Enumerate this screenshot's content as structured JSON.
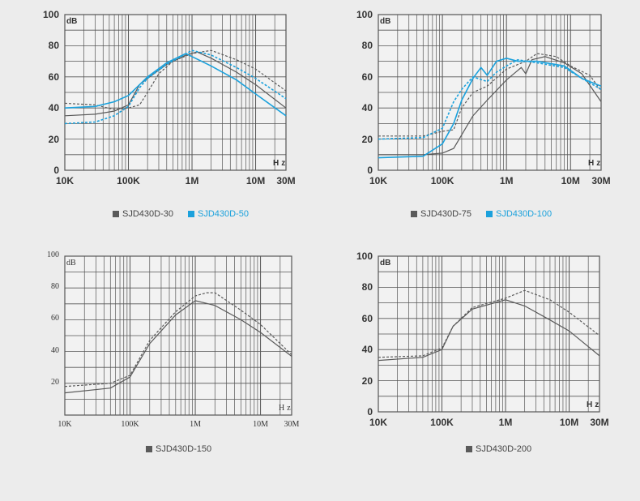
{
  "colors": {
    "gray": "#5a5a5a",
    "blue": "#1ba1dc",
    "grid": "#555555"
  },
  "chart_data": [
    {
      "type": "line",
      "xscale": "log",
      "xlim": [
        10000,
        30000000
      ],
      "ylim": [
        0,
        100
      ],
      "ylabel": "dB",
      "xlabel": "Hz",
      "xticks": [
        {
          "v": 10000,
          "label": "10K"
        },
        {
          "v": 100000,
          "label": "100K"
        },
        {
          "v": 1000000,
          "label": "1M"
        },
        {
          "v": 10000000,
          "label": "10M"
        },
        {
          "v": 30000000,
          "label": "30M"
        }
      ],
      "yticks": [
        0,
        20,
        40,
        60,
        80,
        100
      ],
      "legend": [
        {
          "label": "SJD430D-30",
          "color": "gray"
        },
        {
          "label": "SJD430D-50",
          "color": "blue"
        }
      ],
      "series": [
        {
          "name": "SJD430D-30",
          "style": "solid",
          "color": "gray",
          "points": [
            [
              10000.0,
              35
            ],
            [
              30000.0,
              36
            ],
            [
              60000.0,
              38
            ],
            [
              100000.0,
              42
            ],
            [
              150000.0,
              55
            ],
            [
              200000.0,
              59
            ],
            [
              400000.0,
              68
            ],
            [
              800000.0,
              74
            ],
            [
              1200000.0,
              76
            ],
            [
              2000000.0,
              72
            ],
            [
              5000000.0,
              63
            ],
            [
              10000000.0,
              55
            ],
            [
              30000000.0,
              40
            ]
          ]
        },
        {
          "name": "SJD430D-30",
          "style": "dashed",
          "color": "gray",
          "points": [
            [
              10000.0,
              43
            ],
            [
              30000.0,
              42
            ],
            [
              60000.0,
              39
            ],
            [
              100000.0,
              40
            ],
            [
              150000.0,
              42
            ],
            [
              200000.0,
              50
            ],
            [
              300000.0,
              62
            ],
            [
              500000.0,
              70
            ],
            [
              1000000.0,
              75
            ],
            [
              2000000.0,
              77
            ],
            [
              5000000.0,
              71
            ],
            [
              10000000.0,
              65
            ],
            [
              30000000.0,
              51
            ]
          ]
        },
        {
          "name": "SJD430D-50",
          "style": "solid",
          "color": "blue",
          "points": [
            [
              10000.0,
              40
            ],
            [
              30000.0,
              41
            ],
            [
              60000.0,
              44
            ],
            [
              100000.0,
              48
            ],
            [
              150000.0,
              55
            ],
            [
              200000.0,
              60
            ],
            [
              400000.0,
              69
            ],
            [
              800000.0,
              75
            ],
            [
              1000000.0,
              73
            ],
            [
              2000000.0,
              67
            ],
            [
              5000000.0,
              58
            ],
            [
              10000000.0,
              49
            ],
            [
              30000000.0,
              35
            ]
          ]
        },
        {
          "name": "SJD430D-50",
          "style": "dashed",
          "color": "blue",
          "points": [
            [
              10000.0,
              30
            ],
            [
              30000.0,
              31
            ],
            [
              60000.0,
              35
            ],
            [
              100000.0,
              41
            ],
            [
              150000.0,
              53
            ],
            [
              200000.0,
              59
            ],
            [
              400000.0,
              68
            ],
            [
              1000000.0,
              77
            ],
            [
              2000000.0,
              74
            ],
            [
              5000000.0,
              66
            ],
            [
              10000000.0,
              59
            ],
            [
              30000000.0,
              46
            ]
          ]
        }
      ]
    },
    {
      "type": "line",
      "xscale": "log",
      "xlim": [
        10000,
        30000000
      ],
      "ylim": [
        0,
        100
      ],
      "ylabel": "dB",
      "xlabel": "Hz",
      "xticks": [
        {
          "v": 10000,
          "label": "10K"
        },
        {
          "v": 100000,
          "label": "100K"
        },
        {
          "v": 1000000,
          "label": "1M"
        },
        {
          "v": 10000000,
          "label": "10M"
        },
        {
          "v": 30000000,
          "label": "30M"
        }
      ],
      "yticks": [
        0,
        20,
        40,
        60,
        80,
        100
      ],
      "legend": [
        {
          "label": "SJD430D-75",
          "color": "gray"
        },
        {
          "label": "SJD430D-100",
          "color": "blue"
        }
      ],
      "series": [
        {
          "name": "SJD430D-75",
          "style": "solid",
          "color": "gray",
          "points": [
            [
              10000.0,
              10
            ],
            [
              50000.0,
              10
            ],
            [
              100000.0,
              11
            ],
            [
              150000.0,
              14
            ],
            [
              300000.0,
              35
            ],
            [
              500000.0,
              45
            ],
            [
              1000000.0,
              58
            ],
            [
              1700000.0,
              66
            ],
            [
              2000000.0,
              62
            ],
            [
              2500000.0,
              71
            ],
            [
              4000000.0,
              73
            ],
            [
              8000000.0,
              69
            ],
            [
              15000000.0,
              62
            ],
            [
              30000000.0,
              44
            ]
          ]
        },
        {
          "name": "SJD430D-75",
          "style": "dashed",
          "color": "gray",
          "points": [
            [
              10000.0,
              22
            ],
            [
              50000.0,
              22
            ],
            [
              100000.0,
              25
            ],
            [
              150000.0,
              26
            ],
            [
              200000.0,
              40
            ],
            [
              300000.0,
              50
            ],
            [
              500000.0,
              54
            ],
            [
              1000000.0,
              65
            ],
            [
              2000000.0,
              70
            ],
            [
              3000000.0,
              75
            ],
            [
              6000000.0,
              73
            ],
            [
              10000000.0,
              67
            ],
            [
              20000000.0,
              61
            ],
            [
              30000000.0,
              51
            ]
          ]
        },
        {
          "name": "SJD430D-100",
          "style": "solid",
          "color": "blue",
          "points": [
            [
              10000.0,
              8
            ],
            [
              50000.0,
              9
            ],
            [
              100000.0,
              17
            ],
            [
              150000.0,
              30
            ],
            [
              200000.0,
              45
            ],
            [
              300000.0,
              59
            ],
            [
              400000.0,
              66
            ],
            [
              500000.0,
              61
            ],
            [
              700000.0,
              70
            ],
            [
              1000000.0,
              72
            ],
            [
              1500000.0,
              70
            ],
            [
              3000000.0,
              70
            ],
            [
              8000000.0,
              67
            ],
            [
              15000000.0,
              59
            ],
            [
              30000000.0,
              54
            ]
          ]
        },
        {
          "name": "SJD430D-100",
          "style": "dashed",
          "color": "blue",
          "points": [
            [
              10000.0,
              20
            ],
            [
              50000.0,
              21
            ],
            [
              100000.0,
              27
            ],
            [
              150000.0,
              44
            ],
            [
              200000.0,
              52
            ],
            [
              300000.0,
              60
            ],
            [
              500000.0,
              57
            ],
            [
              700000.0,
              63
            ],
            [
              1000000.0,
              67
            ],
            [
              1500000.0,
              71
            ],
            [
              3000000.0,
              69
            ],
            [
              8000000.0,
              66
            ],
            [
              15000000.0,
              59
            ],
            [
              30000000.0,
              52
            ]
          ]
        }
      ]
    },
    {
      "type": "line",
      "xscale": "log",
      "xlim": [
        10000,
        30000000
      ],
      "ylim": [
        0,
        100
      ],
      "ylabel": "dB",
      "xlabel": "Hz",
      "xticks": [
        {
          "v": 10000,
          "label": "10K"
        },
        {
          "v": 100000,
          "label": "100K"
        },
        {
          "v": 1000000,
          "label": "1M"
        },
        {
          "v": 10000000,
          "label": "10M"
        },
        {
          "v": 30000000,
          "label": "30M"
        }
      ],
      "yticks": [
        20,
        40,
        60,
        80,
        100
      ],
      "legend": [
        {
          "label": "SJD430D-150",
          "color": "gray"
        }
      ],
      "series": [
        {
          "name": "SJD430D-150",
          "style": "solid",
          "color": "gray",
          "points": [
            [
              10000.0,
              14
            ],
            [
              50000.0,
              17
            ],
            [
              100000.0,
              24
            ],
            [
              200000.0,
              45
            ],
            [
              500000.0,
              63
            ],
            [
              1000000.0,
              72
            ],
            [
              2000000.0,
              69
            ],
            [
              5000000.0,
              60
            ],
            [
              10000000.0,
              52
            ],
            [
              30000000.0,
              37
            ]
          ]
        },
        {
          "name": "SJD430D-150",
          "style": "dashed",
          "color": "gray",
          "points": [
            [
              10000.0,
              18
            ],
            [
              50000.0,
              20
            ],
            [
              100000.0,
              25
            ],
            [
              200000.0,
              47
            ],
            [
              500000.0,
              65
            ],
            [
              1000000.0,
              75
            ],
            [
              1500000.0,
              77
            ],
            [
              2000000.0,
              77
            ],
            [
              5000000.0,
              66
            ],
            [
              10000000.0,
              57
            ],
            [
              30000000.0,
              38
            ]
          ]
        }
      ]
    },
    {
      "type": "line",
      "xscale": "log",
      "xlim": [
        10000,
        30000000
      ],
      "ylim": [
        0,
        100
      ],
      "ylabel": "dB",
      "xlabel": "Hz",
      "xticks": [
        {
          "v": 10000,
          "label": "10K"
        },
        {
          "v": 100000,
          "label": "100K"
        },
        {
          "v": 1000000,
          "label": "1M"
        },
        {
          "v": 10000000,
          "label": "10M"
        },
        {
          "v": 30000000,
          "label": "30M"
        }
      ],
      "yticks": [
        0,
        20,
        40,
        60,
        80,
        100
      ],
      "legend": [
        {
          "label": "SJD430D-200",
          "color": "gray"
        }
      ],
      "series": [
        {
          "name": "SJD430D-200",
          "style": "solid",
          "color": "gray",
          "points": [
            [
              10000.0,
              33
            ],
            [
              50000.0,
              35
            ],
            [
              100000.0,
              40
            ],
            [
              150000.0,
              55
            ],
            [
              300000.0,
              66
            ],
            [
              1000000.0,
              72
            ],
            [
              2000000.0,
              68
            ],
            [
              5000000.0,
              59
            ],
            [
              10000000.0,
              52
            ],
            [
              30000000.0,
              36
            ]
          ]
        },
        {
          "name": "SJD430D-200",
          "style": "dashed",
          "color": "gray",
          "points": [
            [
              10000.0,
              35
            ],
            [
              50000.0,
              36
            ],
            [
              100000.0,
              41
            ],
            [
              150000.0,
              55
            ],
            [
              300000.0,
              67
            ],
            [
              1000000.0,
              73
            ],
            [
              2000000.0,
              78
            ],
            [
              5000000.0,
              72
            ],
            [
              10000000.0,
              64
            ],
            [
              30000000.0,
              49
            ]
          ]
        }
      ]
    }
  ]
}
